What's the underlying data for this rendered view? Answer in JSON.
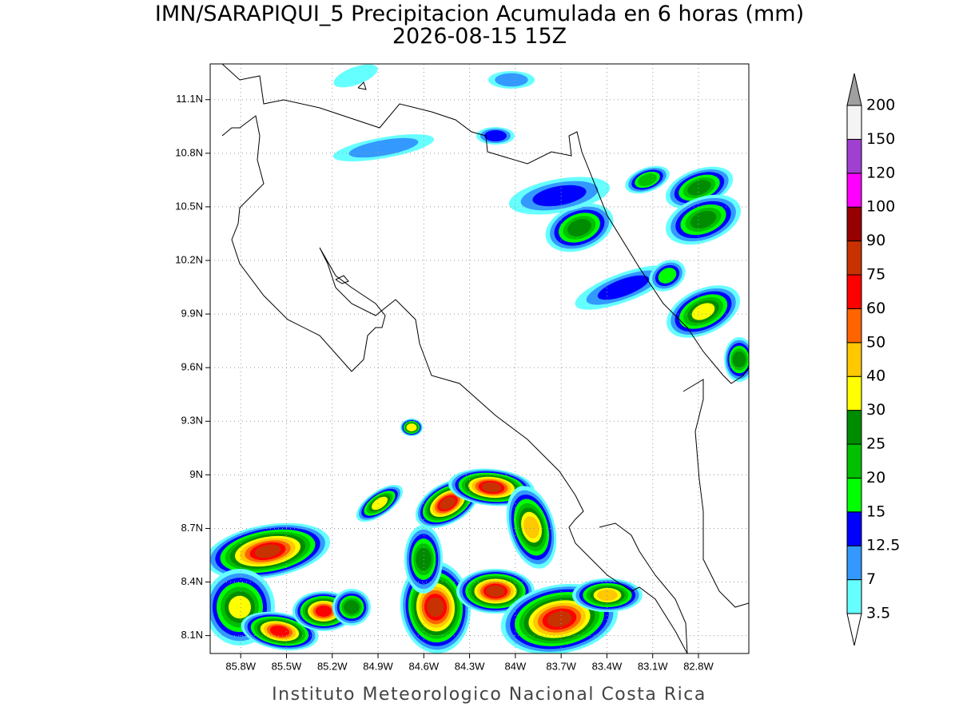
{
  "title": "IMN/SARAPIQUI_5 Precipitacion Acumulada en 6 horas (mm)",
  "subtitle": "2026-08-15 15Z",
  "footer": "Instituto Meteorologico Nacional Costa Rica",
  "map": {
    "lon_range": [
      -86.0,
      -82.47
    ],
    "lat_range": [
      8.0,
      11.3
    ],
    "lat_ticks": [
      {
        "value": 11.1,
        "label": "11.1N"
      },
      {
        "value": 10.8,
        "label": "10.8N"
      },
      {
        "value": 10.5,
        "label": "10.5N"
      },
      {
        "value": 10.2,
        "label": "10.2N"
      },
      {
        "value": 9.9,
        "label": "9.9N"
      },
      {
        "value": 9.6,
        "label": "9.6N"
      },
      {
        "value": 9.3,
        "label": "9.3N"
      },
      {
        "value": 9,
        "label": "9N"
      },
      {
        "value": 8.7,
        "label": "8.7N"
      },
      {
        "value": 8.4,
        "label": "8.4N"
      },
      {
        "value": 8.1,
        "label": "8.1N"
      }
    ],
    "lon_ticks": [
      {
        "value": -85.8,
        "label": "85.8W"
      },
      {
        "value": -85.5,
        "label": "85.5W"
      },
      {
        "value": -85.2,
        "label": "85.2W"
      },
      {
        "value": -84.9,
        "label": "84.9W"
      },
      {
        "value": -84.6,
        "label": "84.6W"
      },
      {
        "value": -84.3,
        "label": "84.3W"
      },
      {
        "value": -84,
        "label": "84W"
      },
      {
        "value": -83.7,
        "label": "83.7W"
      },
      {
        "value": -83.4,
        "label": "83.4W"
      },
      {
        "value": -83.1,
        "label": "83.1W"
      },
      {
        "value": -82.8,
        "label": "82.8W"
      }
    ]
  },
  "colorbar": {
    "levels": [
      3.5,
      7,
      12.5,
      15,
      20,
      25,
      30,
      40,
      50,
      60,
      75,
      90,
      100,
      120,
      150,
      200
    ],
    "colors": [
      "#ffffff",
      "#66ffff",
      "#3399ff",
      "#0000ff",
      "#00ff00",
      "#00c000",
      "#008c00",
      "#ffff00",
      "#ffc800",
      "#ff6400",
      "#ff0000",
      "#c83200",
      "#960000",
      "#ff00ff",
      "#a040d0",
      "#f4f4f4",
      "#a0a0a0"
    ]
  }
}
